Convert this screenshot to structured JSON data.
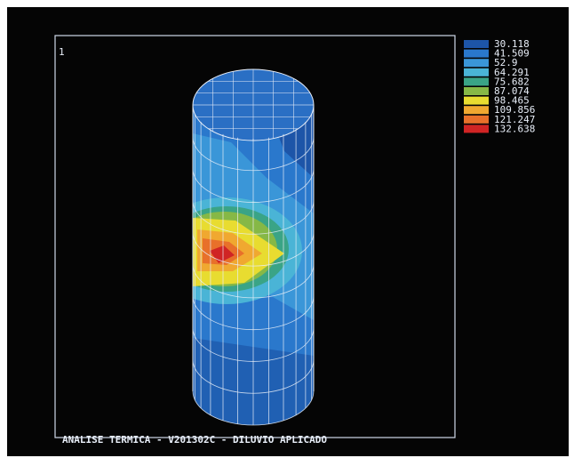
{
  "screen": {
    "marker": "1",
    "footer": "ANALISE TERMICA - V201302C - DILUVIO APLICADO"
  },
  "legend": {
    "items": [
      {
        "label": "30.118",
        "color": "#1d55a8"
      },
      {
        "label": "41.509",
        "color": "#2a78cc"
      },
      {
        "label": "52.9",
        "color": "#3a96d8"
      },
      {
        "label": "64.291",
        "color": "#4ab4d6"
      },
      {
        "label": "75.682",
        "color": "#3aa486"
      },
      {
        "label": "87.074",
        "color": "#86b846"
      },
      {
        "label": "98.465",
        "color": "#e8dc30"
      },
      {
        "label": "109.856",
        "color": "#f0a830"
      },
      {
        "label": "121.247",
        "color": "#e8702a"
      },
      {
        "label": "132.638",
        "color": "#d02424"
      }
    ]
  }
}
